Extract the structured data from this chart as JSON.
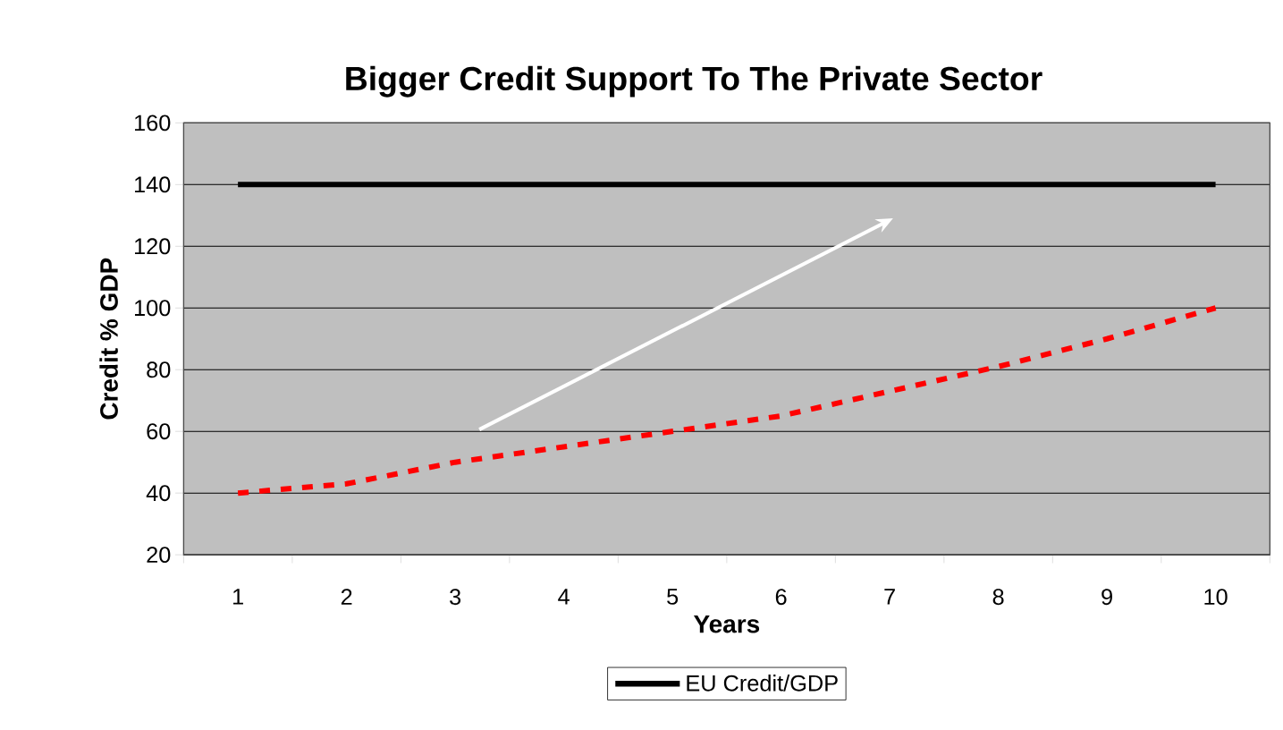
{
  "chart_data": {
    "type": "line",
    "title": "Bigger Credit Support To The Private Sector",
    "xlabel": "Years",
    "ylabel": "Credit % GDP",
    "categories": [
      "1",
      "2",
      "3",
      "4",
      "5",
      "6",
      "7",
      "8",
      "9",
      "10"
    ],
    "series": [
      {
        "name": "EU Credit/GDP",
        "color": "#000000",
        "line_style": "solid",
        "values": [
          140,
          140,
          140,
          140,
          140,
          140,
          140,
          140,
          140,
          140
        ]
      },
      {
        "color": "#ff0000",
        "line_style": "dashed",
        "values": [
          40,
          43,
          50,
          55,
          60,
          65,
          73,
          81,
          90,
          100
        ]
      }
    ],
    "ylim": [
      20,
      160
    ],
    "yticks": [
      20,
      40,
      60,
      80,
      100,
      120,
      140,
      160
    ],
    "grid": "y",
    "legend": "bottom",
    "marker": "none"
  }
}
